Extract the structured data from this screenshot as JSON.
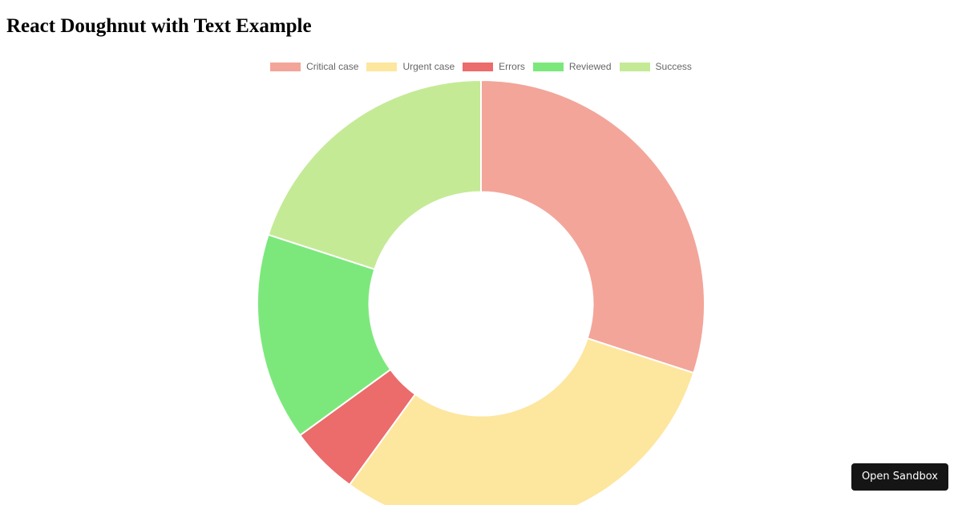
{
  "page": {
    "title": "React Doughnut with Text Example"
  },
  "chart_data": {
    "type": "doughnut",
    "categories": [
      "Critical case",
      "Urgent case",
      "Errors",
      "Reviewed",
      "Success"
    ],
    "values": [
      30,
      30,
      5,
      15,
      20
    ],
    "colors": [
      "#f3a59a",
      "#fde69e",
      "#ec6b6b",
      "#7ce87c",
      "#c4ea96"
    ],
    "title": "",
    "legend": "top",
    "cutout": 0.5
  },
  "sandbox": {
    "label": "Open Sandbox"
  }
}
